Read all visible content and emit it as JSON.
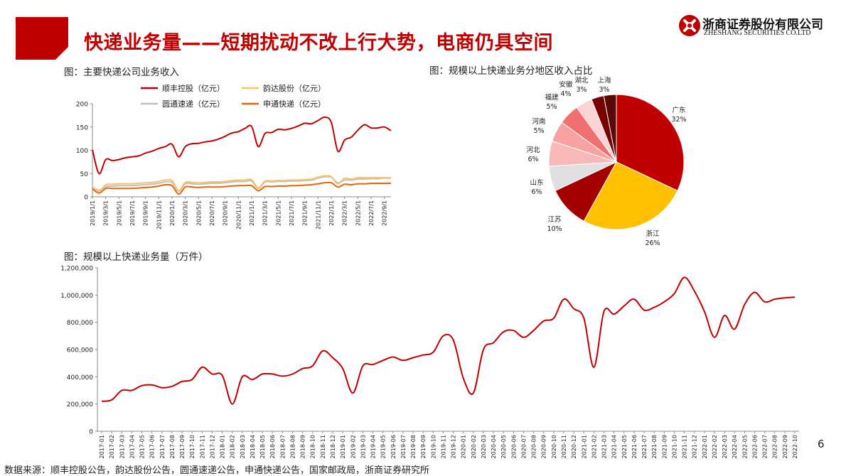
{
  "header": {
    "title": "快递业务量——短期扰动不改上行大势，电商仍具空间",
    "logo_cn": "浙商证券股份有限公司",
    "logo_en": "ZHESHANG SECURITIES CO.LTD"
  },
  "page_number": "6",
  "source_note": "数据来源：顺丰控股公告，韵达股份公告，圆通速递公告，申通快递公告，国家邮政局，浙商证券研究所",
  "colors": {
    "brand_red": "#c00000",
    "sf": "#c00000",
    "yunda": "#f5c36a",
    "yto": "#bfbfbf",
    "sto": "#e8640c"
  },
  "chart_data": [
    {
      "type": "line",
      "title": "图：主要快递公司业务收入",
      "ylim": [
        0,
        200
      ],
      "yticks": [
        "0",
        "50",
        "100",
        "150",
        "200"
      ],
      "x": [
        "2019/1",
        "2019/2",
        "2019/3",
        "2019/4",
        "2019/5",
        "2019/6",
        "2019/7",
        "2019/8",
        "2019/9",
        "2019/10",
        "2019/11",
        "2019/12",
        "2020/1",
        "2020/2",
        "2020/3",
        "2020/4",
        "2020/5",
        "2020/6",
        "2020/7",
        "2020/8",
        "2020/9",
        "2020/10",
        "2020/11",
        "2020/12",
        "2021/1",
        "2021/2",
        "2021/3",
        "2021/4",
        "2021/5",
        "2021/6",
        "2021/7",
        "2021/8",
        "2021/9",
        "2021/10",
        "2021/11",
        "2021/12",
        "2022/1",
        "2022/2",
        "2022/3",
        "2022/4",
        "2022/5",
        "2022/6",
        "2022/7",
        "2022/8",
        "2022/9",
        "2022/10"
      ],
      "xticks": [
        "2019/1/1",
        "2019/3/1",
        "2019/5/1",
        "2019/7/1",
        "2019/9/1",
        "2019/11/1",
        "2020/1/1",
        "2020/3/1",
        "2020/5/1",
        "2020/7/1",
        "2020/9/1",
        "2020/11/1",
        "2021/1/1",
        "2021/3/1",
        "2021/5/1",
        "2021/7/1",
        "2021/9/1",
        "2021/11/1",
        "2022/1/1",
        "2022/3/1",
        "2022/5/1",
        "2022/7/1",
        "2022/9/1"
      ],
      "series": [
        {
          "name": "顺丰控股（亿元）",
          "color": "#c00000",
          "values": [
            101,
            50,
            80,
            78,
            80,
            84,
            86,
            88,
            94,
            98,
            104,
            108,
            113,
            86,
            108,
            114,
            115,
            118,
            120,
            124,
            130,
            137,
            140,
            147,
            151,
            108,
            136,
            138,
            145,
            144,
            147,
            152,
            158,
            157,
            164,
            171,
            160,
            98,
            122,
            128,
            143,
            155,
            148,
            148,
            150,
            142
          ]
        },
        {
          "name": "韵达股份（亿元）",
          "color": "#f5c36a",
          "values": [
            22,
            12,
            26,
            27,
            28,
            28,
            28,
            29,
            30,
            31,
            33,
            36,
            35,
            13,
            31,
            31,
            30,
            31,
            32,
            32,
            33,
            35,
            36,
            36,
            37,
            19,
            34,
            34,
            35,
            35,
            36,
            36,
            37,
            38,
            42,
            45,
            43,
            28,
            40,
            38,
            41,
            41,
            41,
            41,
            41,
            41
          ]
        },
        {
          "name": "圆通速递（亿元）",
          "color": "#bfbfbf",
          "values": [
            20,
            14,
            22,
            23,
            24,
            24,
            24,
            25,
            26,
            27,
            29,
            32,
            31,
            12,
            28,
            28,
            27,
            28,
            29,
            29,
            30,
            32,
            33,
            33,
            34,
            18,
            32,
            32,
            33,
            33,
            34,
            34,
            35,
            36,
            40,
            43,
            42,
            30,
            36,
            36,
            38,
            38,
            39,
            39,
            40,
            40
          ]
        },
        {
          "name": "申通快递（亿元）",
          "color": "#e8640c",
          "values": [
            17,
            8,
            18,
            18,
            18,
            18,
            18,
            19,
            20,
            21,
            23,
            26,
            24,
            6,
            21,
            21,
            20,
            21,
            21,
            21,
            22,
            23,
            24,
            24,
            24,
            13,
            22,
            22,
            23,
            23,
            24,
            24,
            25,
            26,
            28,
            30,
            30,
            21,
            27,
            26,
            28,
            28,
            29,
            29,
            29,
            29
          ]
        }
      ]
    },
    {
      "type": "pie",
      "title": "图：规模以上快递业务分地区收入占比",
      "slices": [
        {
          "label": "广东",
          "value": 32,
          "pct": "32%",
          "color": "#c00000"
        },
        {
          "label": "浙江",
          "value": 26,
          "pct": "26%",
          "color": "#ffc000"
        },
        {
          "label": "江苏",
          "value": 10,
          "pct": "10%",
          "color": "#a50000"
        },
        {
          "label": "山东",
          "value": 6,
          "pct": "6%",
          "color": "#e0e0e0"
        },
        {
          "label": "河北",
          "value": 6,
          "pct": "6%",
          "color": "#f9b8b8"
        },
        {
          "label": "河南",
          "value": 5,
          "pct": "5%",
          "color": "#f7a1a1"
        },
        {
          "label": "福建",
          "value": 5,
          "pct": "5%",
          "color": "#f07070"
        },
        {
          "label": "安徽",
          "value": 4,
          "pct": "4%",
          "color": "#fbd3d3"
        },
        {
          "label": "湖北",
          "value": 3,
          "pct": "3%",
          "color": "#7a0000"
        },
        {
          "label": "上海",
          "value": 3,
          "pct": "3%",
          "color": "#5a0808"
        }
      ]
    },
    {
      "type": "line",
      "title": "图：规模以上快递业务量（万件）",
      "ylim": [
        0,
        1200000
      ],
      "yticks": [
        "0",
        "200,000",
        "400,000",
        "600,000",
        "800,000",
        "1,000,000",
        "1,200,000"
      ],
      "x": [
        "2017-01",
        "2017-02",
        "2017-03",
        "2017-04",
        "2017-05",
        "2017-06",
        "2017-07",
        "2017-08",
        "2017-09",
        "2017-10",
        "2017-11",
        "2017-12",
        "2018-01",
        "2018-02",
        "2018-03",
        "2018-04",
        "2018-05",
        "2018-06",
        "2018-07",
        "2018-08",
        "2018-09",
        "2018-10",
        "2018-11",
        "2018-12",
        "2019-01",
        "2019-02",
        "2019-03",
        "2019-04",
        "2019-05",
        "2019-06",
        "2019-07",
        "2019-08",
        "2019-09",
        "2019-10",
        "2019-11",
        "2019-12",
        "2020-01",
        "2020-02",
        "2020-03",
        "2020-04",
        "2020-05",
        "2020-06",
        "2020-07",
        "2020-08",
        "2020-09",
        "2020-10",
        "2020-11",
        "2020-12",
        "2021-01",
        "2021-02",
        "2021-03",
        "2021-04",
        "2021-05",
        "2021-06",
        "2021-07",
        "2021-08",
        "2021-09",
        "2021-10",
        "2021-11",
        "2021-12",
        "2022-01",
        "2022-02",
        "2022-03",
        "2022-04",
        "2022-05",
        "2022-06",
        "2022-07",
        "2022-08",
        "2022-09",
        "2022-10"
      ],
      "series": [
        {
          "name": "",
          "color": "#c00000",
          "values": [
            220000,
            230000,
            300000,
            300000,
            335000,
            340000,
            320000,
            330000,
            365000,
            380000,
            470000,
            420000,
            410000,
            200000,
            400000,
            380000,
            420000,
            420000,
            405000,
            420000,
            460000,
            480000,
            590000,
            540000,
            460000,
            280000,
            480000,
            490000,
            520000,
            545000,
            520000,
            540000,
            560000,
            580000,
            700000,
            670000,
            390000,
            280000,
            600000,
            650000,
            730000,
            740000,
            690000,
            740000,
            810000,
            830000,
            970000,
            900000,
            830000,
            470000,
            880000,
            860000,
            920000,
            970000,
            890000,
            910000,
            950000,
            1010000,
            1130000,
            1030000,
            880000,
            690000,
            850000,
            750000,
            930000,
            1020000,
            950000,
            970000,
            980000,
            985000
          ]
        }
      ]
    }
  ]
}
